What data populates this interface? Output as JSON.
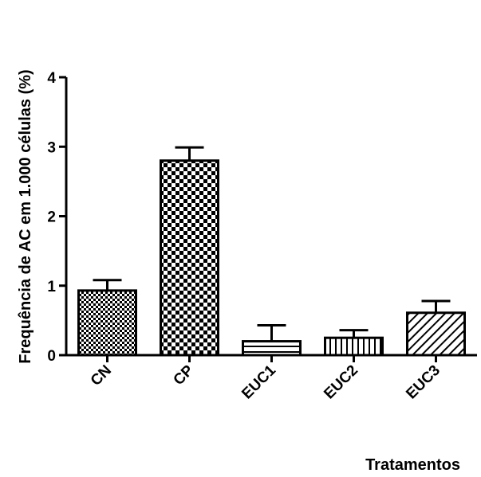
{
  "chart_data": {
    "type": "bar",
    "title": "",
    "xlabel": "Tratamentos",
    "ylabel": "Frequência de AC em 1.000 células (%)",
    "categories": [
      "CN",
      "CP",
      "EUC1",
      "EUC2",
      "EUC3"
    ],
    "values": [
      0.93,
      2.8,
      0.2,
      0.25,
      0.61
    ],
    "errors": [
      0.15,
      0.19,
      0.23,
      0.11,
      0.17
    ],
    "patterns": [
      "fine-check",
      "checker",
      "horizontal-lines",
      "vertical-lines",
      "diagonal-lines"
    ],
    "ylim": [
      0,
      4
    ],
    "yticks": [
      0,
      1,
      2,
      3,
      4
    ],
    "grid": false,
    "legend": "none"
  }
}
